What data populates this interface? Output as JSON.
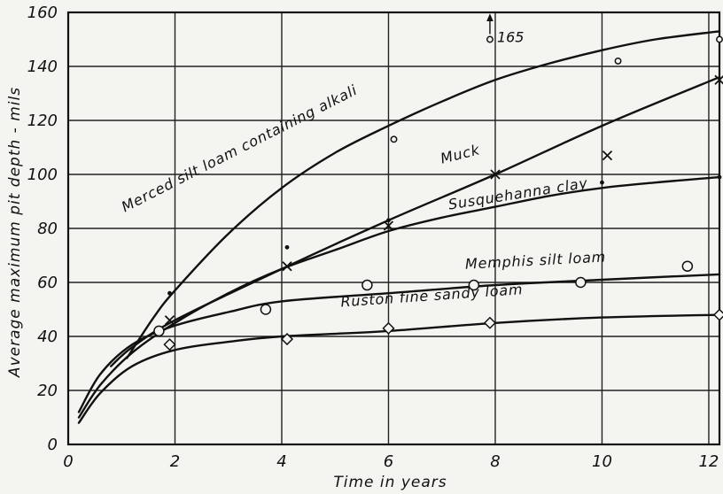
{
  "chart_data": {
    "type": "scatter",
    "title": "",
    "xlabel": "Time in years",
    "ylabel": "Average maximum pit depth - mils",
    "xlim": [
      0,
      12.2
    ],
    "ylim": [
      0,
      160
    ],
    "x_ticks": [
      "0",
      "2",
      "4",
      "6",
      "8",
      "10",
      "12"
    ],
    "y_ticks": [
      "0",
      "20",
      "40",
      "60",
      "80",
      "100",
      "120",
      "140",
      "160"
    ],
    "grid": true,
    "series": [
      {
        "name": "Merced silt loam containing alkali",
        "marker": "circle",
        "points": [
          {
            "x": 6.1,
            "y": 113
          },
          {
            "x": 7.9,
            "y": 150
          },
          {
            "x": 10.3,
            "y": 142
          },
          {
            "x": 12.2,
            "y": 150
          }
        ],
        "curve": [
          {
            "x": 1.1,
            "y": 32
          },
          {
            "x": 1.6,
            "y": 47
          },
          {
            "x": 2.0,
            "y": 57
          },
          {
            "x": 3.0,
            "y": 78
          },
          {
            "x": 4.0,
            "y": 95
          },
          {
            "x": 5.0,
            "y": 108
          },
          {
            "x": 6.0,
            "y": 118
          },
          {
            "x": 7.0,
            "y": 127
          },
          {
            "x": 8.0,
            "y": 135
          },
          {
            "x": 9.0,
            "y": 141
          },
          {
            "x": 10.0,
            "y": 146
          },
          {
            "x": 11.0,
            "y": 150
          },
          {
            "x": 12.2,
            "y": 153
          }
        ]
      },
      {
        "name": "Muck",
        "marker": "x",
        "points": [
          {
            "x": 1.9,
            "y": 46
          },
          {
            "x": 4.1,
            "y": 66
          },
          {
            "x": 6.0,
            "y": 81
          },
          {
            "x": 8.0,
            "y": 100
          },
          {
            "x": 10.1,
            "y": 107
          },
          {
            "x": 12.2,
            "y": 135
          }
        ],
        "curve": [
          {
            "x": 0.8,
            "y": 29
          },
          {
            "x": 1.2,
            "y": 36
          },
          {
            "x": 2.0,
            "y": 46
          },
          {
            "x": 4.0,
            "y": 65
          },
          {
            "x": 6.0,
            "y": 83
          },
          {
            "x": 8.0,
            "y": 100
          },
          {
            "x": 10.0,
            "y": 118
          },
          {
            "x": 12.2,
            "y": 136
          }
        ]
      },
      {
        "name": "Susquehanna clay",
        "marker": "dot",
        "points": [
          {
            "x": 1.9,
            "y": 56
          },
          {
            "x": 4.1,
            "y": 73
          },
          {
            "x": 6.0,
            "y": 83
          },
          {
            "x": 10.0,
            "y": 97
          },
          {
            "x": 12.2,
            "y": 99
          }
        ],
        "curve": [
          {
            "x": 0.2,
            "y": 10
          },
          {
            "x": 0.6,
            "y": 22
          },
          {
            "x": 1.2,
            "y": 34
          },
          {
            "x": 2.0,
            "y": 45
          },
          {
            "x": 3.0,
            "y": 56
          },
          {
            "x": 4.0,
            "y": 65
          },
          {
            "x": 5.0,
            "y": 72
          },
          {
            "x": 6.0,
            "y": 79
          },
          {
            "x": 7.0,
            "y": 84
          },
          {
            "x": 8.0,
            "y": 88
          },
          {
            "x": 9.0,
            "y": 92
          },
          {
            "x": 10.0,
            "y": 95
          },
          {
            "x": 11.0,
            "y": 97
          },
          {
            "x": 12.2,
            "y": 99
          }
        ]
      },
      {
        "name": "Memphis silt loam",
        "marker": "circle",
        "points": [
          {
            "x": 1.7,
            "y": 42
          },
          {
            "x": 3.7,
            "y": 50
          },
          {
            "x": 5.6,
            "y": 59
          },
          {
            "x": 7.6,
            "y": 59
          },
          {
            "x": 9.6,
            "y": 60
          },
          {
            "x": 11.6,
            "y": 66
          }
        ],
        "curve": [
          {
            "x": 0.2,
            "y": 12
          },
          {
            "x": 0.6,
            "y": 26
          },
          {
            "x": 1.2,
            "y": 37
          },
          {
            "x": 2.0,
            "y": 44
          },
          {
            "x": 3.0,
            "y": 49
          },
          {
            "x": 4.0,
            "y": 53
          },
          {
            "x": 6.0,
            "y": 56
          },
          {
            "x": 8.0,
            "y": 59
          },
          {
            "x": 10.0,
            "y": 61
          },
          {
            "x": 12.2,
            "y": 63
          }
        ]
      },
      {
        "name": "Ruston fine sandy loam",
        "marker": "diamond",
        "points": [
          {
            "x": 1.9,
            "y": 37
          },
          {
            "x": 4.1,
            "y": 39
          },
          {
            "x": 6.0,
            "y": 43
          },
          {
            "x": 7.9,
            "y": 45
          },
          {
            "x": 12.2,
            "y": 48
          }
        ],
        "curve": [
          {
            "x": 0.2,
            "y": 8
          },
          {
            "x": 0.6,
            "y": 19
          },
          {
            "x": 1.2,
            "y": 29
          },
          {
            "x": 2.0,
            "y": 35
          },
          {
            "x": 3.0,
            "y": 38
          },
          {
            "x": 4.0,
            "y": 40
          },
          {
            "x": 6.0,
            "y": 42
          },
          {
            "x": 8.0,
            "y": 45
          },
          {
            "x": 10.0,
            "y": 47
          },
          {
            "x": 12.2,
            "y": 48
          }
        ]
      }
    ],
    "annotations": [
      {
        "text": "165",
        "x": 7.9,
        "y": 150
      }
    ]
  },
  "colors": {
    "background": "#f4f4f1",
    "ink": "#111111",
    "grid": "#222222"
  }
}
